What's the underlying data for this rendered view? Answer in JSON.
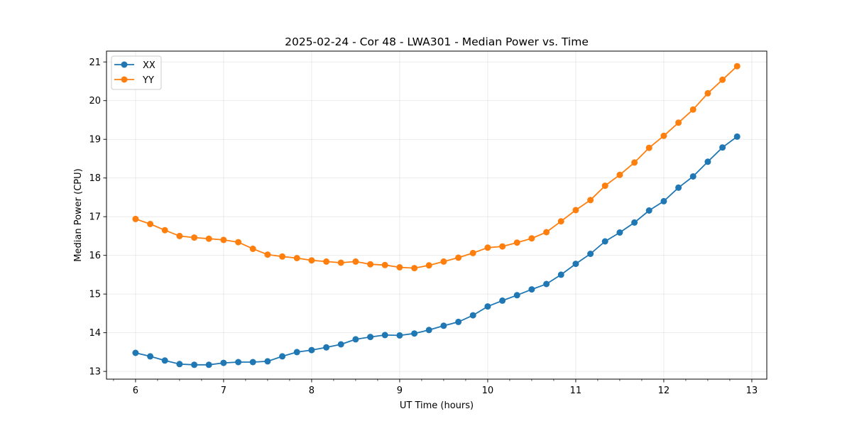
{
  "chart_data": {
    "type": "line",
    "title": "2025-02-24 - Cor 48 - LWA301 - Median Power vs. Time",
    "xlabel": "UT Time (hours)",
    "ylabel": "Median Power (CPU)",
    "xlim": [
      5.67,
      13.17
    ],
    "ylim": [
      12.8,
      21.28
    ],
    "xticks": [
      6,
      7,
      8,
      9,
      10,
      11,
      12,
      13
    ],
    "yticks": [
      13,
      14,
      15,
      16,
      17,
      18,
      19,
      20,
      21
    ],
    "x_minor_step": 0.25,
    "grid": true,
    "legend_position": "top-left",
    "x": [
      6.0,
      6.167,
      6.333,
      6.5,
      6.667,
      6.833,
      7.0,
      7.167,
      7.333,
      7.5,
      7.667,
      7.833,
      8.0,
      8.167,
      8.333,
      8.5,
      8.667,
      8.833,
      9.0,
      9.167,
      9.333,
      9.5,
      9.667,
      9.833,
      10.0,
      10.167,
      10.333,
      10.5,
      10.667,
      10.833,
      11.0,
      11.167,
      11.333,
      11.5,
      11.667,
      11.833,
      12.0,
      12.167,
      12.333,
      12.5,
      12.667,
      12.833
    ],
    "series": [
      {
        "name": "XX",
        "color": "#1f77b4",
        "values": [
          13.48,
          13.39,
          13.28,
          13.19,
          13.17,
          13.17,
          13.22,
          13.24,
          13.24,
          13.26,
          13.39,
          13.5,
          13.55,
          13.62,
          13.7,
          13.83,
          13.89,
          13.94,
          13.93,
          13.98,
          14.07,
          14.18,
          14.28,
          14.45,
          14.68,
          14.83,
          14.97,
          15.12,
          15.26,
          15.5,
          15.78,
          16.04,
          16.36,
          16.59,
          16.85,
          17.16,
          17.4,
          17.75,
          18.04,
          18.42,
          18.79,
          19.07
        ]
      },
      {
        "name": "YY",
        "color": "#ff7f0e",
        "values": [
          16.94,
          16.81,
          16.65,
          16.5,
          16.46,
          16.43,
          16.4,
          16.34,
          16.17,
          16.02,
          15.97,
          15.93,
          15.87,
          15.84,
          15.81,
          15.84,
          15.77,
          15.75,
          15.69,
          15.67,
          15.74,
          15.84,
          15.94,
          16.06,
          16.2,
          16.23,
          16.33,
          16.44,
          16.6,
          16.88,
          17.17,
          17.43,
          17.8,
          18.08,
          18.4,
          18.78,
          19.09,
          19.43,
          19.77,
          20.19,
          20.54,
          20.89
        ]
      }
    ]
  }
}
